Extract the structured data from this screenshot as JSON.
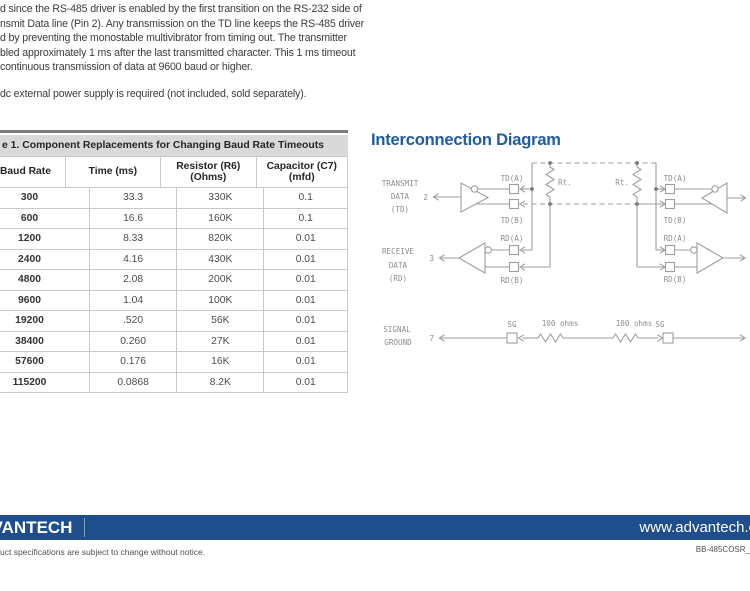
{
  "document": {
    "paragraph1_lines": [
      "d since the RS-485 driver is enabled by the first transition on the RS-232 side of",
      "nsmit Data line (Pin 2).  Any transmission on the TD line keeps the RS-485 driver",
      "d by preventing the monostable multivibrator from timing out. The transmitter",
      "bled approximately 1 ms after the last transmitted character. This 1 ms timeout",
      "continuous transmission of data at 9600 baud or higher."
    ],
    "paragraph2_lines": [
      "dc external power supply is required (not included, sold separately)."
    ]
  },
  "table": {
    "title": "e 1. Component Replacements for Changing Baud Rate Timeouts",
    "headers": [
      {
        "line1": "Baud Rate",
        "line2": ""
      },
      {
        "line1": "Time (ms)",
        "line2": ""
      },
      {
        "line1": "Resistor (R6)",
        "line2": "(Ohms)"
      },
      {
        "line1": "Capacitor (C7)",
        "line2": "(mfd)"
      }
    ],
    "rows": [
      [
        "300",
        "33.3",
        "330K",
        "0.1"
      ],
      [
        "600",
        "16.6",
        "160K",
        "0.1"
      ],
      [
        "1200",
        "8.33",
        "820K",
        "0.01"
      ],
      [
        "2400",
        "4.16",
        "430K",
        "0.01"
      ],
      [
        "4800",
        "2.08",
        "200K",
        "0.01"
      ],
      [
        "9600",
        "1.04",
        "100K",
        "0.01"
      ],
      [
        "19200",
        ".520",
        "56K",
        "0.01"
      ],
      [
        "38400",
        "0.260",
        "27K",
        "0.01"
      ],
      [
        "57600",
        "0.176",
        "16K",
        "0.01"
      ],
      [
        "115200",
        "0.0868",
        "8.2K",
        "0.01"
      ]
    ]
  },
  "diagram": {
    "heading": "Interconnection Diagram",
    "transmit_label_1": "TRANSMIT",
    "transmit_label_2": "DATA",
    "transmit_label_3": "(TD)",
    "transmit_pin": "2",
    "receive_label_1": "RECEIVE",
    "receive_label_2": "DATA",
    "receive_label_3": "(RD)",
    "receive_pin": "3",
    "ground_label_1": "SIGNAL",
    "ground_label_2": "GROUND",
    "ground_pin": "7",
    "td_a": "TD(A)",
    "td_b": "TD(B)",
    "rd_a": "RD(A)",
    "rd_b": "RD(B)",
    "rt": "Rt.",
    "sg": "SG",
    "ohms": "100 ohms"
  },
  "footer": {
    "logo_text": "ADVANTECH",
    "url": "www.advantech.com",
    "note": "uct specifications are subject to change without notice.",
    "doc_code": "BB-485COSR_"
  },
  "colors": {
    "heading_blue": "#1e5ca5",
    "footer_bar_blue": "#1f4e8c",
    "table_title_bg": "#d9d9d9",
    "table_topline": "#7d7d7d",
    "diagram_gray": "#9e9e9e",
    "body_text": "#3c3c3c"
  }
}
